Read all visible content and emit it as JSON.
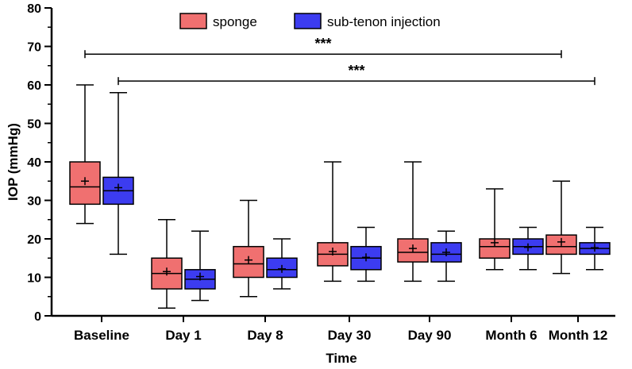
{
  "chart_data": {
    "type": "boxplot",
    "title": "",
    "xlabel": "Time",
    "ylabel": "IOP (mmHg)",
    "ylim": [
      0,
      80
    ],
    "yticks": [
      0,
      10,
      20,
      30,
      40,
      50,
      60,
      70,
      80
    ],
    "categories": [
      "Baseline",
      "Day 1",
      "Day 8",
      "Day 30",
      "Day 90",
      "Month 6",
      "Month 12"
    ],
    "series": [
      {
        "name": "sponge",
        "color": "#f07070",
        "boxes": [
          {
            "min": 24,
            "q1": 29,
            "median": 33.5,
            "q3": 40,
            "max": 60,
            "mean": 35
          },
          {
            "min": 2,
            "q1": 7,
            "median": 11,
            "q3": 15,
            "max": 25,
            "mean": 11.5
          },
          {
            "min": 5,
            "q1": 10,
            "median": 13.5,
            "q3": 18,
            "max": 30,
            "mean": 14.5
          },
          {
            "min": 9,
            "q1": 13,
            "median": 16,
            "q3": 19,
            "max": 40,
            "mean": 16.7
          },
          {
            "min": 9,
            "q1": 14,
            "median": 16.5,
            "q3": 20,
            "max": 40,
            "mean": 17.5
          },
          {
            "min": 12,
            "q1": 15,
            "median": 18,
            "q3": 20,
            "max": 33,
            "mean": 19
          },
          {
            "min": 11,
            "q1": 16,
            "median": 18,
            "q3": 21,
            "max": 35,
            "mean": 19.2
          }
        ]
      },
      {
        "name": "sub-tenon injection",
        "color": "#3c3cf0",
        "boxes": [
          {
            "min": 16,
            "q1": 29,
            "median": 32.5,
            "q3": 36,
            "max": 58,
            "mean": 33.3
          },
          {
            "min": 4,
            "q1": 7,
            "median": 9.5,
            "q3": 12,
            "max": 22,
            "mean": 10.2
          },
          {
            "min": 7,
            "q1": 10,
            "median": 12,
            "q3": 15,
            "max": 20,
            "mean": 12.2
          },
          {
            "min": 9,
            "q1": 12,
            "median": 15,
            "q3": 18,
            "max": 23,
            "mean": 15.2
          },
          {
            "min": 9,
            "q1": 14,
            "median": 16,
            "q3": 19,
            "max": 22,
            "mean": 16.5
          },
          {
            "min": 12,
            "q1": 16,
            "median": 18,
            "q3": 20,
            "max": 23,
            "mean": 17.8
          },
          {
            "min": 12,
            "q1": 16,
            "median": 17.5,
            "q3": 19,
            "max": 23,
            "mean": 17.7
          }
        ]
      }
    ],
    "significance": [
      {
        "label": "***",
        "y": 68,
        "from": {
          "category": "Baseline",
          "series": "sponge"
        },
        "to": {
          "category": "Month 12",
          "series": "sponge"
        }
      },
      {
        "label": "***",
        "y": 61,
        "from": {
          "category": "Baseline",
          "series": "sub-tenon injection"
        },
        "to": {
          "category": "Month 12",
          "series": "sub-tenon injection"
        }
      }
    ],
    "legend_position": "top"
  }
}
